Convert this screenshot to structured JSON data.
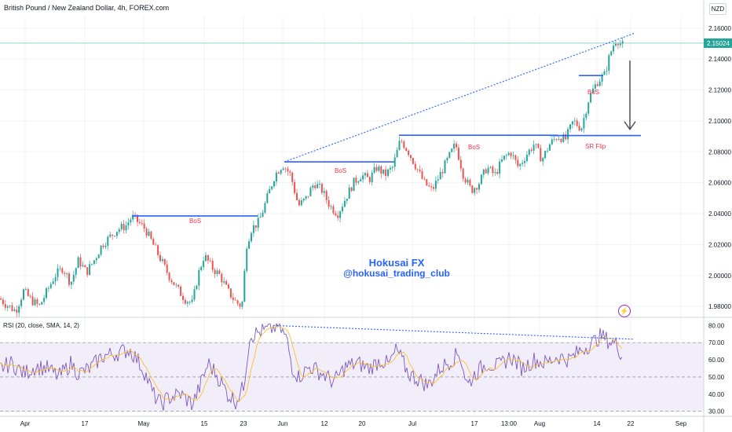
{
  "header": {
    "symbol_title": "British Pound / New Zealand Dollar, 4h, FOREX.com",
    "currency": "NZD"
  },
  "watermark": {
    "line1": "Hokusai FX",
    "line2": "@hokusai_trading_club"
  },
  "price_panel": {
    "ticks": [
      1.98,
      2.0,
      2.02,
      2.04,
      2.06,
      2.08,
      2.1,
      2.12,
      2.14,
      2.16
    ],
    "current_price": 2.15024,
    "current_price_label": "2.15024",
    "price_label_color": "#26a69a"
  },
  "rsi_panel": {
    "title": "RSI (20, close, SMA, 14, 2)",
    "ticks": [
      30,
      40,
      50,
      60,
      70,
      80
    ],
    "tick_labels": [
      "30.00",
      "40.00",
      "50.00",
      "60.00",
      "70.00",
      "80.00"
    ],
    "overbought": 70,
    "oversold": 30,
    "midline": 50
  },
  "x_axis": {
    "ticks": [
      "Apr",
      "17",
      "May",
      "15",
      "23",
      "Jun",
      "12",
      "20",
      "Jul",
      "17",
      "13:00",
      "Aug",
      "14",
      "22",
      "Sep"
    ]
  },
  "annotations": {
    "bos_1": "BoS",
    "bos_2": "BoS",
    "bos_3": "BoS",
    "bos_4": "BoS",
    "sr_flip": "SR Flip",
    "label_color": "#f23645",
    "line_color": "#2962ff"
  },
  "colors": {
    "up_candle": "#26a69a",
    "down_candle": "#ef5350",
    "rsi_line": "#7e57c2",
    "rsi_ma": "#fbc02d",
    "rsi_band": "#ede7f6"
  },
  "chart_data": [
    {
      "type": "candlestick",
      "title": "British Pound / New Zealand Dollar, 4h, FOREX.com",
      "ylim": [
        1.975,
        2.168
      ],
      "x_ticks": [
        "Apr",
        "17",
        "May",
        "15",
        "23",
        "Jun",
        "12",
        "20",
        "Jul",
        "17",
        "13:00",
        "Aug",
        "14",
        "22",
        "Sep"
      ],
      "price_path": [
        [
          0,
          1.985
        ],
        [
          6,
          1.982
        ],
        [
          12,
          1.98
        ],
        [
          20,
          1.977
        ],
        [
          30,
          1.99
        ],
        [
          40,
          1.984
        ],
        [
          50,
          1.98
        ],
        [
          60,
          1.99
        ],
        [
          70,
          2.0
        ],
        [
          80,
          2.005
        ],
        [
          90,
          1.995
        ],
        [
          100,
          2.01
        ],
        [
          110,
          2.002
        ],
        [
          120,
          2.01
        ],
        [
          130,
          2.02
        ],
        [
          140,
          2.025
        ],
        [
          150,
          2.03
        ],
        [
          160,
          2.032
        ],
        [
          168,
          2.038
        ],
        [
          175,
          2.035
        ],
        [
          185,
          2.03
        ],
        [
          195,
          2.02
        ],
        [
          205,
          2.01
        ],
        [
          215,
          2.0
        ],
        [
          225,
          1.992
        ],
        [
          235,
          1.985
        ],
        [
          245,
          1.982
        ],
        [
          252,
          2.0
        ],
        [
          260,
          2.013
        ],
        [
          270,
          2.005
        ],
        [
          280,
          2.0
        ],
        [
          290,
          1.99
        ],
        [
          300,
          1.983
        ],
        [
          308,
          1.98
        ],
        [
          314,
          2.02
        ],
        [
          320,
          2.03
        ],
        [
          330,
          2.035
        ],
        [
          340,
          2.05
        ],
        [
          350,
          2.065
        ],
        [
          360,
          2.072
        ],
        [
          370,
          2.065
        ],
        [
          380,
          2.045
        ],
        [
          390,
          2.05
        ],
        [
          400,
          2.06
        ],
        [
          410,
          2.055
        ],
        [
          420,
          2.045
        ],
        [
          430,
          2.04
        ],
        [
          440,
          2.05
        ],
        [
          450,
          2.06
        ],
        [
          460,
          2.065
        ],
        [
          470,
          2.062
        ],
        [
          480,
          2.07
        ],
        [
          490,
          2.065
        ],
        [
          500,
          2.07
        ],
        [
          510,
          2.088
        ],
        [
          520,
          2.08
        ],
        [
          530,
          2.07
        ],
        [
          540,
          2.06
        ],
        [
          550,
          2.055
        ],
        [
          560,
          2.065
        ],
        [
          570,
          2.075
        ],
        [
          580,
          2.085
        ],
        [
          590,
          2.065
        ],
        [
          600,
          2.055
        ],
        [
          610,
          2.06
        ],
        [
          620,
          2.07
        ],
        [
          630,
          2.065
        ],
        [
          640,
          2.075
        ],
        [
          650,
          2.08
        ],
        [
          660,
          2.07
        ],
        [
          670,
          2.078
        ],
        [
          680,
          2.085
        ],
        [
          690,
          2.075
        ],
        [
          700,
          2.085
        ],
        [
          710,
          2.09
        ],
        [
          720,
          2.088
        ],
        [
          730,
          2.1
        ],
        [
          740,
          2.095
        ],
        [
          750,
          2.115
        ],
        [
          760,
          2.125
        ],
        [
          770,
          2.13
        ],
        [
          775,
          2.14
        ],
        [
          780,
          2.148
        ],
        [
          785,
          2.153
        ],
        [
          790,
          2.15
        ],
        [
          795,
          2.148
        ]
      ],
      "lines": [
        {
          "name": "BoS",
          "price": 2.0385,
          "x_from": 168,
          "x_to": 328
        },
        {
          "name": "BoS",
          "price": 2.0735,
          "x_from": 362,
          "x_to": 502
        },
        {
          "name": "BoS",
          "price": 2.0907,
          "x_from": 508,
          "x_to": 710
        },
        {
          "name": "BoS",
          "price": 2.1293,
          "x_from": 737,
          "x_to": 768
        },
        {
          "name": "SR Flip",
          "price": 2.0905,
          "x_from": 700,
          "x_to": 816
        }
      ],
      "trendline": {
        "style": "dotted",
        "from": [
          362,
          2.0735
        ],
        "to": [
          808,
          2.1567
        ]
      },
      "arrow": {
        "direction": "down",
        "from_price": 2.139,
        "to_price": 2.0945
      }
    },
    {
      "type": "line",
      "title": "RSI (20, close, SMA, 14, 2)",
      "ylim": [
        28,
        82
      ],
      "series": [
        {
          "values_path": [
            [
              0,
              55
            ],
            [
              15,
              58
            ],
            [
              30,
              52
            ],
            [
              45,
              56
            ],
            [
              60,
              55
            ],
            [
              75,
              50
            ],
            [
              90,
              58
            ],
            [
              100,
              52
            ],
            [
              115,
              55
            ],
            [
              130,
              62
            ],
            [
              150,
              64
            ],
            [
              165,
              66
            ],
            [
              175,
              60
            ],
            [
              185,
              52
            ],
            [
              195,
              40
            ],
            [
              205,
              34
            ],
            [
              215,
              38
            ],
            [
              230,
              40
            ],
            [
              245,
              34
            ],
            [
              255,
              45
            ],
            [
              265,
              58
            ],
            [
              275,
              52
            ],
            [
              290,
              40
            ],
            [
              300,
              36
            ],
            [
              310,
              44
            ],
            [
              318,
              74
            ],
            [
              330,
              76
            ],
            [
              345,
              78
            ],
            [
              355,
              80
            ],
            [
              365,
              72
            ],
            [
              372,
              56
            ],
            [
              380,
              50
            ],
            [
              395,
              56
            ],
            [
              410,
              52
            ],
            [
              425,
              47
            ],
            [
              440,
              56
            ],
            [
              455,
              58
            ],
            [
              470,
              55
            ],
            [
              485,
              60
            ],
            [
              495,
              57
            ],
            [
              505,
              66
            ],
            [
              520,
              52
            ],
            [
              535,
              48
            ],
            [
              545,
              45
            ],
            [
              560,
              55
            ],
            [
              575,
              60
            ],
            [
              585,
              64
            ],
            [
              595,
              45
            ],
            [
              605,
              52
            ],
            [
              620,
              58
            ],
            [
              635,
              56
            ],
            [
              650,
              62
            ],
            [
              665,
              55
            ],
            [
              680,
              60
            ],
            [
              695,
              58
            ],
            [
              710,
              62
            ],
            [
              725,
              60
            ],
            [
              740,
              66
            ],
            [
              755,
              70
            ],
            [
              765,
              74
            ],
            [
              775,
              71
            ],
            [
              785,
              69
            ],
            [
              793,
              62
            ]
          ]
        }
      ],
      "trendline": {
        "style": "dotted",
        "from": [
          348,
          80
        ],
        "to": [
          806,
          72
        ]
      }
    }
  ]
}
